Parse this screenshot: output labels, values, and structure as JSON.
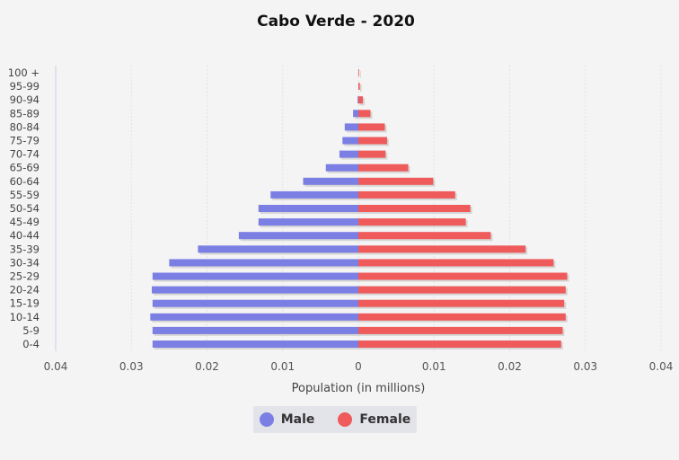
{
  "chart_data": {
    "type": "bar",
    "orientation": "horizontal-diverging",
    "title": "Cabo Verde - 2020",
    "xlabel": "Population (in millions)",
    "ylabel": "",
    "xlim": [
      -0.04,
      0.04
    ],
    "x_tick_values": [
      -0.04,
      -0.03,
      -0.02,
      -0.01,
      0,
      0.01,
      0.02,
      0.03,
      0.04
    ],
    "x_tick_labels": [
      "0.04",
      "0.03",
      "0.02",
      "0.01",
      "0",
      "0.01",
      "0.02",
      "0.03",
      "0.04"
    ],
    "categories": [
      "100 +",
      "95-99",
      "90-94",
      "85-89",
      "80-84",
      "75-79",
      "70-74",
      "65-69",
      "60-64",
      "55-59",
      "50-54",
      "45-49",
      "40-44",
      "35-39",
      "30-34",
      "25-29",
      "20-24",
      "15-19",
      "10-14",
      "5-9",
      "0-4"
    ],
    "series": [
      {
        "name": "Male",
        "color": "#7b7fe3",
        "values": [
          0,
          0,
          0.0001,
          0.0007,
          0.0018,
          0.0021,
          0.0025,
          0.0043,
          0.0073,
          0.0116,
          0.0132,
          0.0132,
          0.0158,
          0.0212,
          0.025,
          0.0272,
          0.0273,
          0.0272,
          0.0275,
          0.0272,
          0.0272
        ]
      },
      {
        "name": "Female",
        "color": "#ef5a5a",
        "values": [
          0.0001,
          0.0002,
          0.0006,
          0.0016,
          0.0035,
          0.0038,
          0.0036,
          0.0066,
          0.0099,
          0.0128,
          0.0148,
          0.0142,
          0.0175,
          0.0221,
          0.0258,
          0.0276,
          0.0274,
          0.0272,
          0.0274,
          0.027,
          0.0268
        ]
      }
    ],
    "grid": true,
    "legend_position": "bottom-center"
  },
  "legend": {
    "items": [
      {
        "label": "Male",
        "color": "#7b7fe3"
      },
      {
        "label": "Female",
        "color": "#ef5a5a"
      }
    ]
  }
}
